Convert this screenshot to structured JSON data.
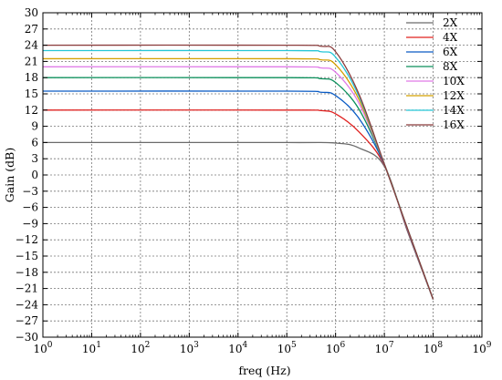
{
  "chart_data": {
    "type": "line",
    "title": "",
    "xlabel": "freq (Hz)",
    "ylabel": "Gain (dB)",
    "x_scale": "log",
    "xlim": [
      1,
      1000000000
    ],
    "ylim": [
      -30,
      30
    ],
    "grid": true,
    "legend_position": "top-right",
    "x_tick_labels": [
      {
        "base": "10",
        "exp": "0"
      },
      {
        "base": "10",
        "exp": "1"
      },
      {
        "base": "10",
        "exp": "2"
      },
      {
        "base": "10",
        "exp": "3"
      },
      {
        "base": "10",
        "exp": "4"
      },
      {
        "base": "10",
        "exp": "5"
      },
      {
        "base": "10",
        "exp": "6"
      },
      {
        "base": "10",
        "exp": "7"
      },
      {
        "base": "10",
        "exp": "8"
      },
      {
        "base": "10",
        "exp": "9"
      }
    ],
    "y_ticks": [
      30,
      27,
      24,
      21,
      18,
      15,
      12,
      9,
      6,
      3,
      0,
      -3,
      -6,
      -9,
      -12,
      -15,
      -18,
      -21,
      -24,
      -27,
      -30
    ],
    "series": [
      {
        "name": "2X",
        "color": "#6b6b6b",
        "x": [
          1,
          100000,
          1000000,
          3000000,
          10000000,
          30000000,
          100000000
        ],
        "y": [
          6.0,
          6.0,
          5.9,
          5.0,
          1.6,
          -10.5,
          -23.0
        ]
      },
      {
        "name": "4X",
        "color": "#e0201f",
        "x": [
          1,
          100000,
          500000,
          1000000,
          3000000,
          10000000,
          30000000,
          100000000
        ],
        "y": [
          12.0,
          12.0,
          11.9,
          11.3,
          8.0,
          1.8,
          -10.3,
          -23.0
        ]
      },
      {
        "name": "6X",
        "color": "#0a5bc4",
        "x": [
          1,
          100000,
          500000,
          1000000,
          3000000,
          10000000,
          30000000,
          100000000
        ],
        "y": [
          15.5,
          15.5,
          15.3,
          14.7,
          10.5,
          1.9,
          -10.2,
          -23.0
        ]
      },
      {
        "name": "8X",
        "color": "#0a8f5a",
        "x": [
          1,
          100000,
          500000,
          1000000,
          3000000,
          10000000,
          30000000,
          100000000
        ],
        "y": [
          18.0,
          18.0,
          17.8,
          17.1,
          12.2,
          2.0,
          -10.1,
          -23.0
        ]
      },
      {
        "name": "10X",
        "color": "#e07be8",
        "x": [
          1,
          100000,
          500000,
          1000000,
          3000000,
          10000000,
          30000000,
          100000000
        ],
        "y": [
          20.0,
          20.0,
          19.8,
          19.0,
          13.3,
          2.0,
          -10.1,
          -23.0
        ]
      },
      {
        "name": "12X",
        "color": "#d4a000",
        "x": [
          1,
          100000,
          500000,
          1000000,
          3000000,
          10000000,
          30000000,
          100000000
        ],
        "y": [
          21.5,
          21.5,
          21.3,
          20.4,
          14.0,
          2.0,
          -10.0,
          -23.0
        ]
      },
      {
        "name": "14X",
        "color": "#26c6d6",
        "x": [
          1,
          100000,
          500000,
          1000000,
          3000000,
          10000000,
          30000000,
          100000000
        ],
        "y": [
          23.0,
          23.0,
          22.8,
          21.8,
          14.6,
          2.0,
          -10.0,
          -23.0
        ]
      },
      {
        "name": "16X",
        "color": "#8a3b3b",
        "x": [
          1,
          100000,
          500000,
          1000000,
          3000000,
          10000000,
          30000000,
          100000000
        ],
        "y": [
          24.0,
          24.0,
          23.8,
          22.8,
          15.0,
          2.0,
          -10.0,
          -23.0
        ]
      }
    ]
  }
}
